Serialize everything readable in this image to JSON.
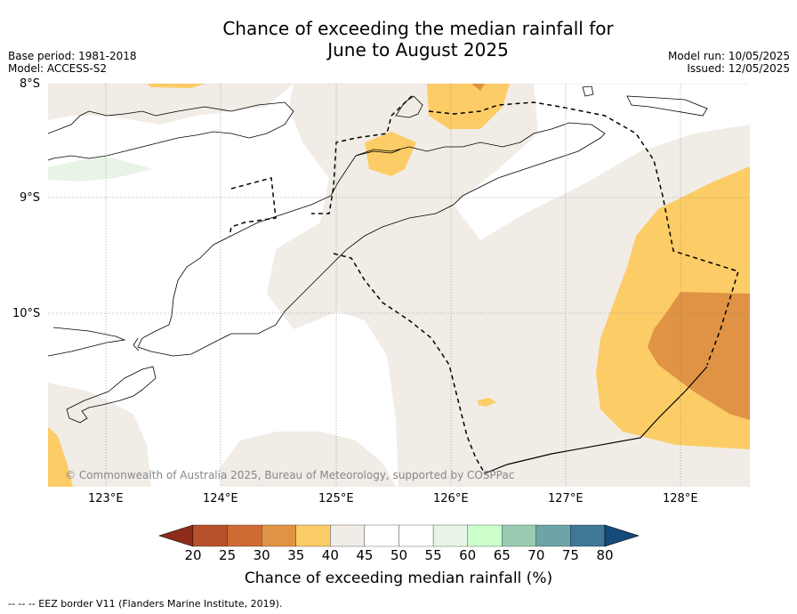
{
  "title_line1": "Chance of exceeding the median rainfall for",
  "title_line2": "June to August 2025",
  "base_period": "Base period: 1981-2018",
  "model": "Model: ACCESS-S2",
  "model_run": "Model run: 10/05/2025",
  "issued": "Issued: 12/05/2025",
  "copyright": "© Commonwealth of Australia 2025, Bureau of Meteorology, supported by COSPPac",
  "lat_labels": [
    "8°S",
    "9°S",
    "10°S"
  ],
  "lon_labels": [
    "123°E",
    "124°E",
    "125°E",
    "126°E",
    "127°E",
    "128°E"
  ],
  "colorbar": {
    "title": "Chance of exceeding median rainfall (%)",
    "ticks": [
      "20",
      "25",
      "30",
      "35",
      "40",
      "45",
      "50",
      "55",
      "60",
      "65",
      "70",
      "75",
      "80"
    ],
    "colors": [
      "#8c2d1b",
      "#b5522a",
      "#cf6b35",
      "#e09344",
      "#fccc66",
      "#f1ece6",
      "#ffffff",
      "#ffffff",
      "#e8f4e6",
      "#ccffcc",
      "#99ccb2",
      "#6ca4a8",
      "#3e7896",
      "#154a7c"
    ]
  },
  "footer": "--  --  -- EEZ border V11 (Flanders Marine Institute, 2019)."
}
